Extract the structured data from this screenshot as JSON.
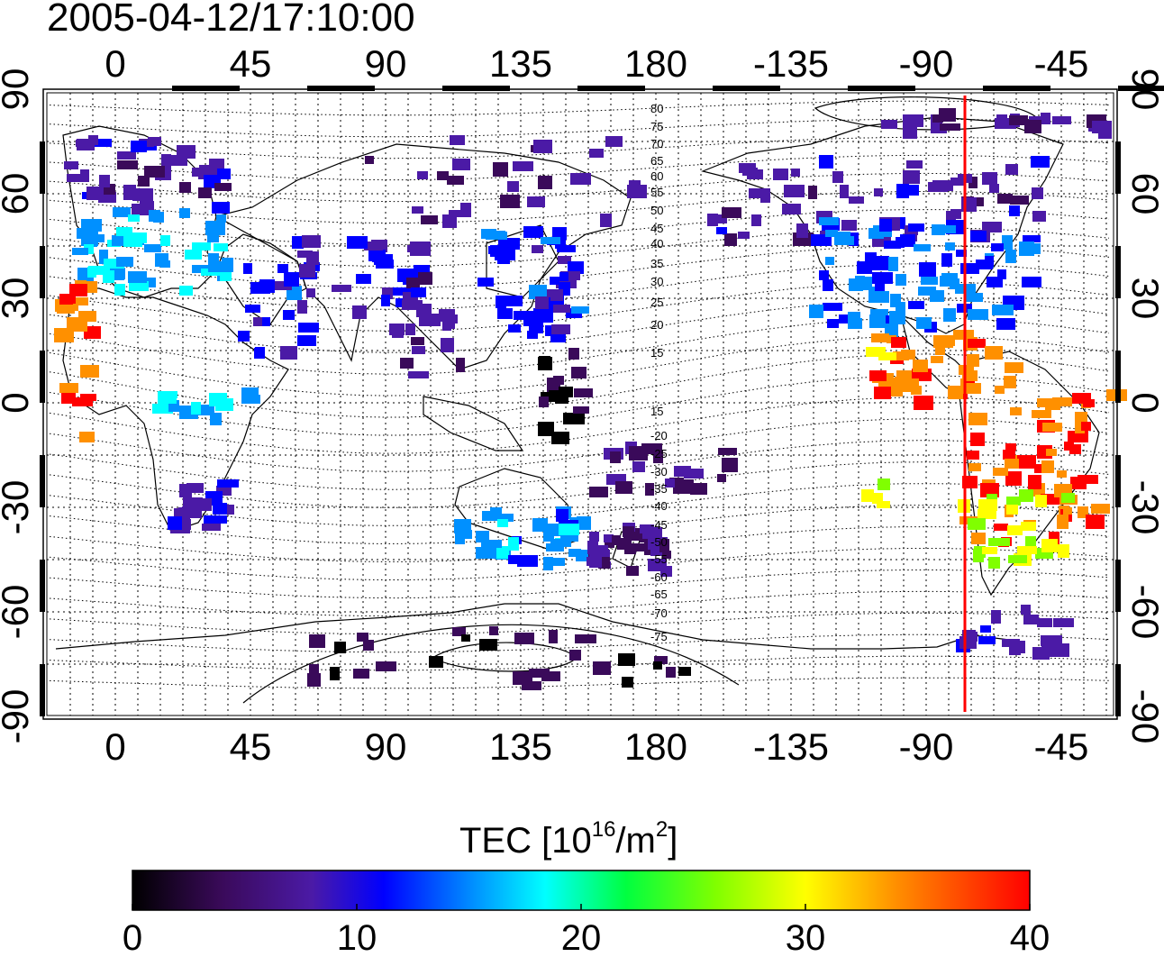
{
  "title": "2005-04-12/17:10:00",
  "map": {
    "top_lon_labels": [
      "0",
      "45",
      "90",
      "135",
      "180",
      "-135",
      "-90",
      "-45"
    ],
    "bottom_lon_labels": [
      "0",
      "45",
      "90",
      "135",
      "180",
      "-135",
      "-90",
      "-45"
    ],
    "left_lat_labels": [
      "90",
      "60",
      "30",
      "0",
      "-30",
      "-60",
      "-90"
    ],
    "right_lat_labels": [
      "90",
      "60",
      "30",
      "0",
      "-30",
      "-60",
      "-90"
    ],
    "contour_labels": [
      "80",
      "75",
      "70",
      "65",
      "60",
      "55",
      "50",
      "45",
      "40",
      "35",
      "30",
      "25",
      "20",
      "15",
      "15",
      "-20",
      "-25",
      "-30",
      "-35",
      "-40",
      "-45",
      "-50",
      "-55",
      "-60",
      "-65",
      "-70",
      "-75"
    ],
    "marker_line_color": "#ff0000"
  },
  "colorbar": {
    "label_main": "TEC  [10",
    "label_sup1": "16",
    "label_mid": "/m",
    "label_sup2": "2",
    "label_end": "]",
    "ticks": [
      "0",
      "10",
      "20",
      "30",
      "40"
    ],
    "range": [
      0,
      40
    ],
    "colors": [
      "#000000",
      "#3a0a5a",
      "#4b1aa6",
      "#0000ff",
      "#0090ff",
      "#00ffff",
      "#00ff40",
      "#80ff00",
      "#ffff00",
      "#ff9000",
      "#ff0000"
    ]
  }
}
